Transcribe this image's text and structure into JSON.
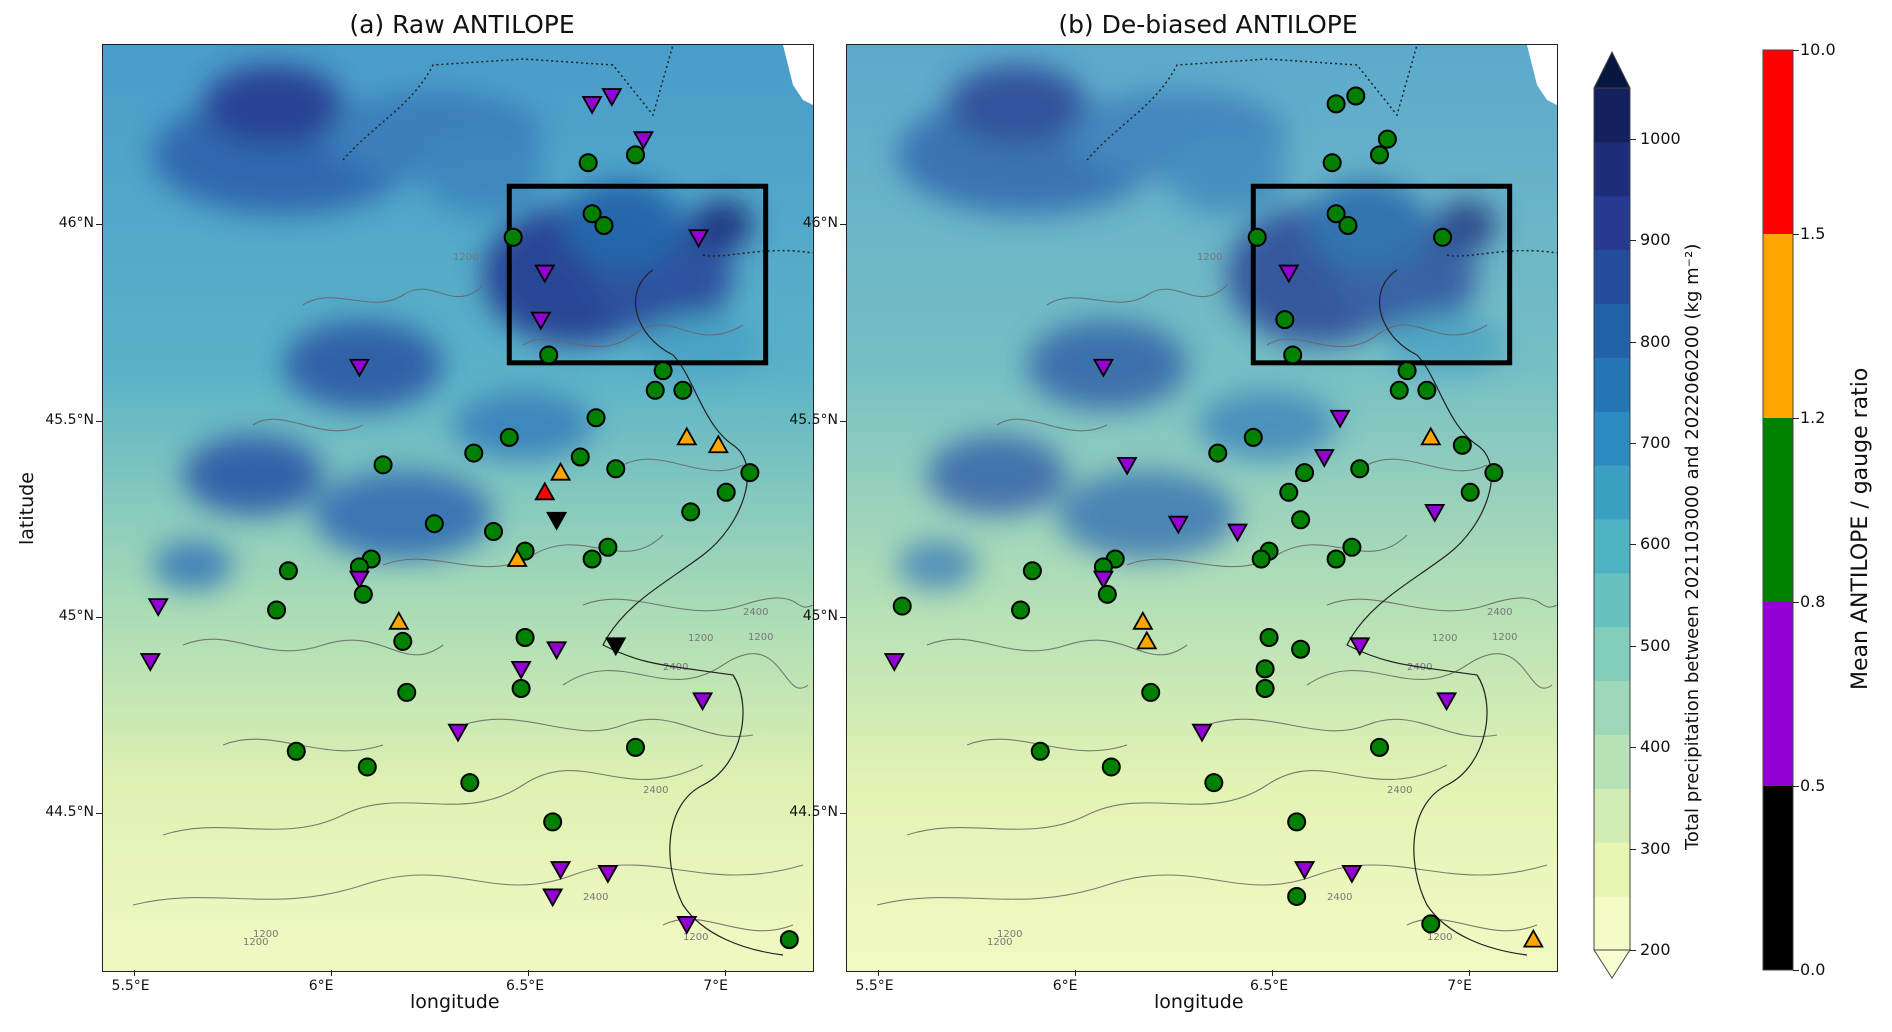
{
  "panels": [
    {
      "id": "raw",
      "title": "(a) Raw ANTILOPE"
    },
    {
      "id": "debiased",
      "title": "(b) De-biased ANTILOPE"
    }
  ],
  "axes": {
    "xlabel": "longitude",
    "ylabel": "latitude",
    "xticks": [
      {
        "value": 5.5,
        "label": "5.5°E"
      },
      {
        "value": 6.0,
        "label": "6°E"
      },
      {
        "value": 6.5,
        "label": "6.5°E"
      },
      {
        "value": 7.0,
        "label": "7°E"
      }
    ],
    "yticks": [
      {
        "value": 44.5,
        "label": "44.5°N"
      },
      {
        "value": 45.0,
        "label": "45°N"
      },
      {
        "value": 45.5,
        "label": "45.5°N"
      },
      {
        "value": 46.0,
        "label": "46°N"
      }
    ],
    "xlim": [
      5.42,
      7.22
    ],
    "ylim": [
      44.1,
      46.46
    ]
  },
  "precip_colorbar": {
    "label": "Total precipitation between 2021103000 and 2022060200 (kg m⁻²)",
    "ticks": [
      "200",
      "300",
      "400",
      "500",
      "600",
      "700",
      "800",
      "900",
      "1000"
    ],
    "min": 200,
    "max": 1050,
    "step": 50,
    "colors": [
      "#f5fbc6",
      "#e8f6b3",
      "#d2edb3",
      "#b7e2b6",
      "#9fd8b8",
      "#83cdbb",
      "#67c2bf",
      "#4eb3c2",
      "#3b9fc2",
      "#2c8bbe",
      "#2576b4",
      "#2162a9",
      "#234c9d",
      "#253a90",
      "#1e2d7a",
      "#15205e"
    ]
  },
  "ratio_colorbar": {
    "label": "Mean ANTILOPE / gauge ratio",
    "bins": [
      {
        "low": "0.0",
        "high": "0.5",
        "color": "#000000"
      },
      {
        "low": "0.5",
        "high": "0.8",
        "color": "#9400d3"
      },
      {
        "low": "0.8",
        "high": "1.2",
        "color": "#008000"
      },
      {
        "low": "1.2",
        "high": "1.5",
        "color": "#ffa500"
      },
      {
        "low": "1.5",
        "high": "10.0",
        "color": "#ff0000"
      }
    ]
  },
  "contour_labels": [
    "1200",
    "2400"
  ],
  "domain_box": {
    "lon": [
      6.45,
      7.1
    ],
    "lat": [
      45.65,
      46.1
    ]
  },
  "stations_raw": [
    {
      "lon": 6.66,
      "lat": 46.31,
      "cls": "purple",
      "shape": "down"
    },
    {
      "lon": 6.71,
      "lat": 46.33,
      "cls": "purple",
      "shape": "down"
    },
    {
      "lon": 6.79,
      "lat": 46.22,
      "cls": "purple",
      "shape": "down"
    },
    {
      "lon": 6.77,
      "lat": 46.18,
      "cls": "green",
      "shape": "circle"
    },
    {
      "lon": 6.65,
      "lat": 46.16,
      "cls": "green",
      "shape": "circle"
    },
    {
      "lon": 6.46,
      "lat": 45.97,
      "cls": "green",
      "shape": "circle"
    },
    {
      "lon": 6.66,
      "lat": 46.03,
      "cls": "green",
      "shape": "circle"
    },
    {
      "lon": 6.69,
      "lat": 46.0,
      "cls": "green",
      "shape": "circle"
    },
    {
      "lon": 6.93,
      "lat": 45.97,
      "cls": "purple",
      "shape": "down"
    },
    {
      "lon": 6.54,
      "lat": 45.88,
      "cls": "purple",
      "shape": "down"
    },
    {
      "lon": 6.53,
      "lat": 45.76,
      "cls": "purple",
      "shape": "down"
    },
    {
      "lon": 6.55,
      "lat": 45.67,
      "cls": "green",
      "shape": "circle"
    },
    {
      "lon": 6.07,
      "lat": 45.64,
      "cls": "purple",
      "shape": "down"
    },
    {
      "lon": 6.84,
      "lat": 45.63,
      "cls": "green",
      "shape": "circle"
    },
    {
      "lon": 6.82,
      "lat": 45.58,
      "cls": "green",
      "shape": "circle"
    },
    {
      "lon": 6.89,
      "lat": 45.58,
      "cls": "green",
      "shape": "circle"
    },
    {
      "lon": 6.67,
      "lat": 45.51,
      "cls": "green",
      "shape": "circle"
    },
    {
      "lon": 6.45,
      "lat": 45.46,
      "cls": "green",
      "shape": "circle"
    },
    {
      "lon": 6.9,
      "lat": 45.46,
      "cls": "orange",
      "shape": "up"
    },
    {
      "lon": 6.98,
      "lat": 45.44,
      "cls": "orange",
      "shape": "up"
    },
    {
      "lon": 6.36,
      "lat": 45.42,
      "cls": "green",
      "shape": "circle"
    },
    {
      "lon": 6.63,
      "lat": 45.41,
      "cls": "green",
      "shape": "circle"
    },
    {
      "lon": 6.13,
      "lat": 45.39,
      "cls": "green",
      "shape": "circle"
    },
    {
      "lon": 6.72,
      "lat": 45.38,
      "cls": "green",
      "shape": "circle"
    },
    {
      "lon": 6.58,
      "lat": 45.37,
      "cls": "orange",
      "shape": "up"
    },
    {
      "lon": 7.06,
      "lat": 45.37,
      "cls": "green",
      "shape": "circle"
    },
    {
      "lon": 6.54,
      "lat": 45.32,
      "cls": "red",
      "shape": "up"
    },
    {
      "lon": 7.0,
      "lat": 45.32,
      "cls": "green",
      "shape": "circle"
    },
    {
      "lon": 6.91,
      "lat": 45.27,
      "cls": "green",
      "shape": "circle"
    },
    {
      "lon": 6.57,
      "lat": 45.25,
      "cls": "black",
      "shape": "down"
    },
    {
      "lon": 6.26,
      "lat": 45.24,
      "cls": "green",
      "shape": "circle"
    },
    {
      "lon": 6.41,
      "lat": 45.22,
      "cls": "green",
      "shape": "circle"
    },
    {
      "lon": 6.7,
      "lat": 45.18,
      "cls": "green",
      "shape": "circle"
    },
    {
      "lon": 6.49,
      "lat": 45.17,
      "cls": "green",
      "shape": "circle"
    },
    {
      "lon": 6.47,
      "lat": 45.15,
      "cls": "orange",
      "shape": "up"
    },
    {
      "lon": 6.1,
      "lat": 45.15,
      "cls": "green",
      "shape": "circle"
    },
    {
      "lon": 6.66,
      "lat": 45.15,
      "cls": "green",
      "shape": "circle"
    },
    {
      "lon": 6.07,
      "lat": 45.13,
      "cls": "green",
      "shape": "circle"
    },
    {
      "lon": 5.89,
      "lat": 45.12,
      "cls": "green",
      "shape": "circle"
    },
    {
      "lon": 6.07,
      "lat": 45.1,
      "cls": "purple",
      "shape": "down"
    },
    {
      "lon": 6.08,
      "lat": 45.06,
      "cls": "green",
      "shape": "circle"
    },
    {
      "lon": 5.56,
      "lat": 45.03,
      "cls": "purple",
      "shape": "down"
    },
    {
      "lon": 5.86,
      "lat": 45.02,
      "cls": "green",
      "shape": "circle"
    },
    {
      "lon": 6.17,
      "lat": 44.99,
      "cls": "orange",
      "shape": "up"
    },
    {
      "lon": 6.49,
      "lat": 44.95,
      "cls": "green",
      "shape": "circle"
    },
    {
      "lon": 6.18,
      "lat": 44.94,
      "cls": "green",
      "shape": "circle"
    },
    {
      "lon": 6.57,
      "lat": 44.92,
      "cls": "purple",
      "shape": "down"
    },
    {
      "lon": 6.72,
      "lat": 44.93,
      "cls": "black",
      "shape": "down"
    },
    {
      "lon": 5.54,
      "lat": 44.89,
      "cls": "purple",
      "shape": "down"
    },
    {
      "lon": 6.48,
      "lat": 44.87,
      "cls": "purple",
      "shape": "down"
    },
    {
      "lon": 6.48,
      "lat": 44.82,
      "cls": "green",
      "shape": "circle"
    },
    {
      "lon": 6.19,
      "lat": 44.81,
      "cls": "green",
      "shape": "circle"
    },
    {
      "lon": 6.94,
      "lat": 44.79,
      "cls": "purple",
      "shape": "down"
    },
    {
      "lon": 6.32,
      "lat": 44.71,
      "cls": "purple",
      "shape": "down"
    },
    {
      "lon": 6.77,
      "lat": 44.67,
      "cls": "green",
      "shape": "circle"
    },
    {
      "lon": 5.91,
      "lat": 44.66,
      "cls": "green",
      "shape": "circle"
    },
    {
      "lon": 6.09,
      "lat": 44.62,
      "cls": "green",
      "shape": "circle"
    },
    {
      "lon": 6.35,
      "lat": 44.58,
      "cls": "green",
      "shape": "circle"
    },
    {
      "lon": 6.56,
      "lat": 44.48,
      "cls": "green",
      "shape": "circle"
    },
    {
      "lon": 6.58,
      "lat": 44.36,
      "cls": "purple",
      "shape": "down"
    },
    {
      "lon": 6.7,
      "lat": 44.35,
      "cls": "purple",
      "shape": "down"
    },
    {
      "lon": 6.56,
      "lat": 44.29,
      "cls": "purple",
      "shape": "down"
    },
    {
      "lon": 6.9,
      "lat": 44.22,
      "cls": "purple",
      "shape": "down"
    },
    {
      "lon": 7.16,
      "lat": 44.18,
      "cls": "green",
      "shape": "circle"
    }
  ],
  "stations_debiased": [
    {
      "lon": 6.66,
      "lat": 46.31,
      "cls": "green",
      "shape": "circle"
    },
    {
      "lon": 6.71,
      "lat": 46.33,
      "cls": "green",
      "shape": "circle"
    },
    {
      "lon": 6.79,
      "lat": 46.22,
      "cls": "green",
      "shape": "circle"
    },
    {
      "lon": 6.77,
      "lat": 46.18,
      "cls": "green",
      "shape": "circle"
    },
    {
      "lon": 6.65,
      "lat": 46.16,
      "cls": "green",
      "shape": "circle"
    },
    {
      "lon": 6.46,
      "lat": 45.97,
      "cls": "green",
      "shape": "circle"
    },
    {
      "lon": 6.66,
      "lat": 46.03,
      "cls": "green",
      "shape": "circle"
    },
    {
      "lon": 6.69,
      "lat": 46.0,
      "cls": "green",
      "shape": "circle"
    },
    {
      "lon": 6.93,
      "lat": 45.97,
      "cls": "green",
      "shape": "circle"
    },
    {
      "lon": 6.54,
      "lat": 45.88,
      "cls": "purple",
      "shape": "down"
    },
    {
      "lon": 6.53,
      "lat": 45.76,
      "cls": "green",
      "shape": "circle"
    },
    {
      "lon": 6.55,
      "lat": 45.67,
      "cls": "green",
      "shape": "circle"
    },
    {
      "lon": 6.07,
      "lat": 45.64,
      "cls": "purple",
      "shape": "down"
    },
    {
      "lon": 6.84,
      "lat": 45.63,
      "cls": "green",
      "shape": "circle"
    },
    {
      "lon": 6.82,
      "lat": 45.58,
      "cls": "green",
      "shape": "circle"
    },
    {
      "lon": 6.89,
      "lat": 45.58,
      "cls": "green",
      "shape": "circle"
    },
    {
      "lon": 6.67,
      "lat": 45.51,
      "cls": "purple",
      "shape": "down"
    },
    {
      "lon": 6.45,
      "lat": 45.46,
      "cls": "green",
      "shape": "circle"
    },
    {
      "lon": 6.9,
      "lat": 45.46,
      "cls": "orange",
      "shape": "up"
    },
    {
      "lon": 6.98,
      "lat": 45.44,
      "cls": "green",
      "shape": "circle"
    },
    {
      "lon": 6.36,
      "lat": 45.42,
      "cls": "green",
      "shape": "circle"
    },
    {
      "lon": 6.63,
      "lat": 45.41,
      "cls": "purple",
      "shape": "down"
    },
    {
      "lon": 6.13,
      "lat": 45.39,
      "cls": "purple",
      "shape": "down"
    },
    {
      "lon": 6.72,
      "lat": 45.38,
      "cls": "green",
      "shape": "circle"
    },
    {
      "lon": 6.58,
      "lat": 45.37,
      "cls": "green",
      "shape": "circle"
    },
    {
      "lon": 7.06,
      "lat": 45.37,
      "cls": "green",
      "shape": "circle"
    },
    {
      "lon": 6.54,
      "lat": 45.32,
      "cls": "green",
      "shape": "circle"
    },
    {
      "lon": 7.0,
      "lat": 45.32,
      "cls": "green",
      "shape": "circle"
    },
    {
      "lon": 6.91,
      "lat": 45.27,
      "cls": "purple",
      "shape": "down"
    },
    {
      "lon": 6.57,
      "lat": 45.25,
      "cls": "green",
      "shape": "circle"
    },
    {
      "lon": 6.26,
      "lat": 45.24,
      "cls": "purple",
      "shape": "down"
    },
    {
      "lon": 6.41,
      "lat": 45.22,
      "cls": "purple",
      "shape": "down"
    },
    {
      "lon": 6.7,
      "lat": 45.18,
      "cls": "green",
      "shape": "circle"
    },
    {
      "lon": 6.49,
      "lat": 45.17,
      "cls": "green",
      "shape": "circle"
    },
    {
      "lon": 6.47,
      "lat": 45.15,
      "cls": "green",
      "shape": "circle"
    },
    {
      "lon": 6.1,
      "lat": 45.15,
      "cls": "green",
      "shape": "circle"
    },
    {
      "lon": 6.66,
      "lat": 45.15,
      "cls": "green",
      "shape": "circle"
    },
    {
      "lon": 6.07,
      "lat": 45.13,
      "cls": "green",
      "shape": "circle"
    },
    {
      "lon": 5.89,
      "lat": 45.12,
      "cls": "green",
      "shape": "circle"
    },
    {
      "lon": 6.07,
      "lat": 45.1,
      "cls": "purple",
      "shape": "down"
    },
    {
      "lon": 6.08,
      "lat": 45.06,
      "cls": "green",
      "shape": "circle"
    },
    {
      "lon": 5.56,
      "lat": 45.03,
      "cls": "green",
      "shape": "circle"
    },
    {
      "lon": 5.86,
      "lat": 45.02,
      "cls": "green",
      "shape": "circle"
    },
    {
      "lon": 6.17,
      "lat": 44.99,
      "cls": "orange",
      "shape": "up"
    },
    {
      "lon": 6.49,
      "lat": 44.95,
      "cls": "green",
      "shape": "circle"
    },
    {
      "lon": 6.18,
      "lat": 44.94,
      "cls": "orange",
      "shape": "up"
    },
    {
      "lon": 6.57,
      "lat": 44.92,
      "cls": "green",
      "shape": "circle"
    },
    {
      "lon": 6.72,
      "lat": 44.93,
      "cls": "purple",
      "shape": "down"
    },
    {
      "lon": 5.54,
      "lat": 44.89,
      "cls": "purple",
      "shape": "down"
    },
    {
      "lon": 6.48,
      "lat": 44.87,
      "cls": "green",
      "shape": "circle"
    },
    {
      "lon": 6.48,
      "lat": 44.82,
      "cls": "green",
      "shape": "circle"
    },
    {
      "lon": 6.19,
      "lat": 44.81,
      "cls": "green",
      "shape": "circle"
    },
    {
      "lon": 6.94,
      "lat": 44.79,
      "cls": "purple",
      "shape": "down"
    },
    {
      "lon": 6.32,
      "lat": 44.71,
      "cls": "purple",
      "shape": "down"
    },
    {
      "lon": 6.77,
      "lat": 44.67,
      "cls": "green",
      "shape": "circle"
    },
    {
      "lon": 5.91,
      "lat": 44.66,
      "cls": "green",
      "shape": "circle"
    },
    {
      "lon": 6.09,
      "lat": 44.62,
      "cls": "green",
      "shape": "circle"
    },
    {
      "lon": 6.35,
      "lat": 44.58,
      "cls": "green",
      "shape": "circle"
    },
    {
      "lon": 6.56,
      "lat": 44.48,
      "cls": "green",
      "shape": "circle"
    },
    {
      "lon": 6.58,
      "lat": 44.36,
      "cls": "purple",
      "shape": "down"
    },
    {
      "lon": 6.7,
      "lat": 44.35,
      "cls": "purple",
      "shape": "down"
    },
    {
      "lon": 6.56,
      "lat": 44.29,
      "cls": "green",
      "shape": "circle"
    },
    {
      "lon": 6.9,
      "lat": 44.22,
      "cls": "green",
      "shape": "circle"
    },
    {
      "lon": 7.16,
      "lat": 44.18,
      "cls": "orange",
      "shape": "up"
    }
  ]
}
